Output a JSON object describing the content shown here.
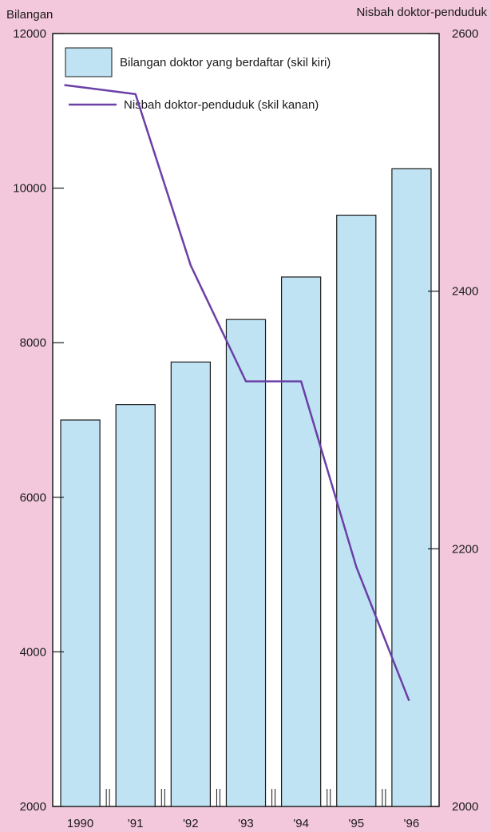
{
  "chart_data": {
    "type": "bar",
    "title": "",
    "categories": [
      "1990",
      "'91",
      "'92",
      "'93",
      "'94",
      "'95",
      "'96"
    ],
    "series": [
      {
        "name": "Bilangan doktor yang berdaftar (skil kiri)",
        "type": "bar",
        "axis": "left",
        "color": "#bfe3f3",
        "values": [
          7000,
          7200,
          7750,
          8300,
          8850,
          9650,
          10250
        ]
      },
      {
        "name": "Nisbah doktor-penduduk (skil kanan)",
        "type": "line",
        "axis": "right",
        "color": "#6a3fa6",
        "values": [
          2560,
          2553,
          2420,
          2330,
          2330,
          2186,
          2082
        ]
      }
    ],
    "ylabel_left": "Bilangan",
    "ylabel_right": "Nisbah doktor-penduduk",
    "ylim_left": [
      2000,
      12000
    ],
    "ylim_right": [
      2000,
      2600
    ],
    "yticks_left": [
      "2000",
      "4000",
      "6000",
      "8000",
      "10000",
      "12000"
    ],
    "yticks_right": [
      "2000",
      "2200",
      "2400",
      "2600"
    ],
    "legend_position": "top-left",
    "grid": false
  }
}
